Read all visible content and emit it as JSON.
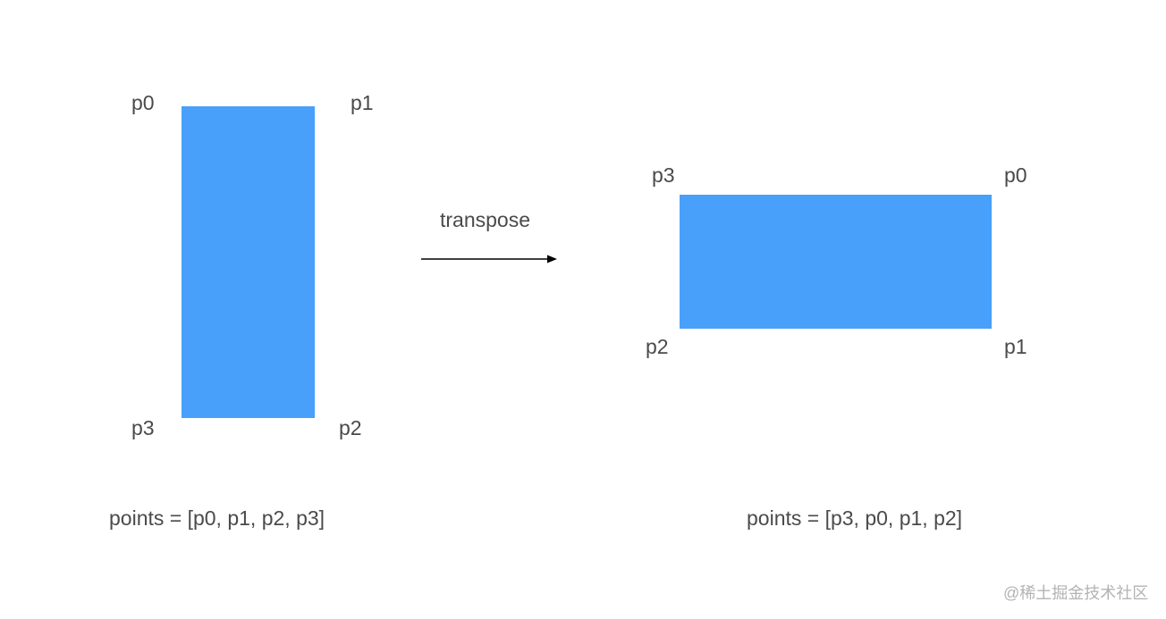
{
  "colors": {
    "rect_fill": "#48a0fa",
    "text": "#4a4a4a",
    "arrow": "#000000",
    "watermark": "#b3b3b3"
  },
  "left": {
    "corners": {
      "top_left": "p0",
      "top_right": "p1",
      "bottom_right": "p2",
      "bottom_left": "p3"
    },
    "caption": "points = [p0, p1, p2, p3]"
  },
  "arrow": {
    "label": "transpose"
  },
  "right": {
    "corners": {
      "top_left": "p3",
      "top_right": "p0",
      "bottom_right": "p1",
      "bottom_left": "p2"
    },
    "caption": "points = [p3, p0, p1, p2]"
  },
  "watermark": "@稀土掘金技术社区"
}
